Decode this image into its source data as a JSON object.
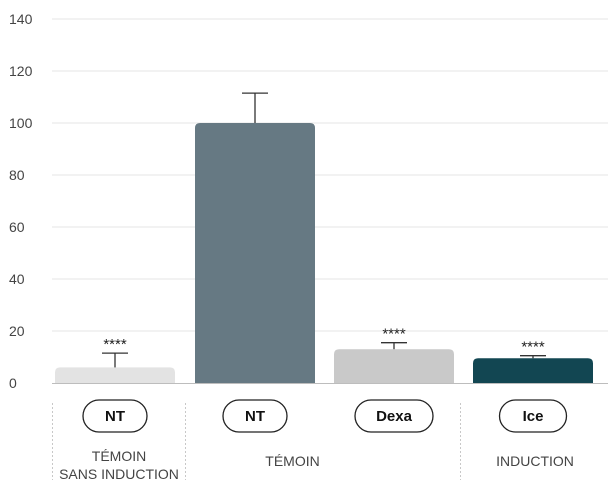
{
  "chart_data": {
    "type": "bar",
    "categories": [
      "NT",
      "NT",
      "Dexa",
      "Ice"
    ],
    "values": [
      6,
      100,
      13,
      9.5
    ],
    "errors": [
      5.5,
      11.5,
      2.5,
      1
    ],
    "significance": [
      "****",
      "",
      "****",
      "****"
    ],
    "bar_colors": [
      "#e3e3e3",
      "#667983",
      "#c9c9c9",
      "#124652"
    ],
    "ylim": [
      0,
      140
    ],
    "yticks": [
      0,
      20,
      40,
      60,
      80,
      100,
      120,
      140
    ],
    "groups": [
      {
        "lines": [
          "TÉMOIN",
          "SANS INDUCTION"
        ],
        "start": 0,
        "end": 0
      },
      {
        "lines": [
          "TÉMOIN"
        ],
        "start": 1,
        "end": 2
      },
      {
        "lines": [
          "INDUCTION"
        ],
        "start": 3,
        "end": 3
      }
    ],
    "grid": true,
    "title": "",
    "xlabel": "",
    "ylabel": ""
  }
}
